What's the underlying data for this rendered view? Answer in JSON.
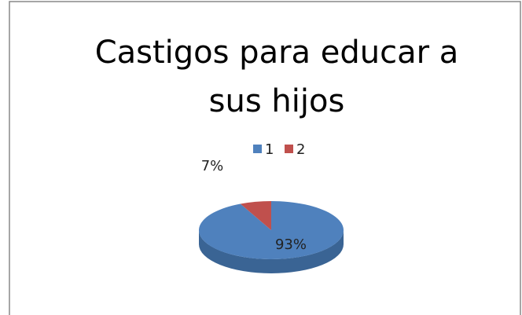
{
  "chart_data": {
    "type": "pie",
    "title": "Castigos para educar a sus hijos",
    "categories": [
      "1",
      "2"
    ],
    "values": [
      93,
      7
    ],
    "value_labels": [
      "93%",
      "7%"
    ],
    "colors": [
      "#4f81bd",
      "#c0504d"
    ]
  }
}
